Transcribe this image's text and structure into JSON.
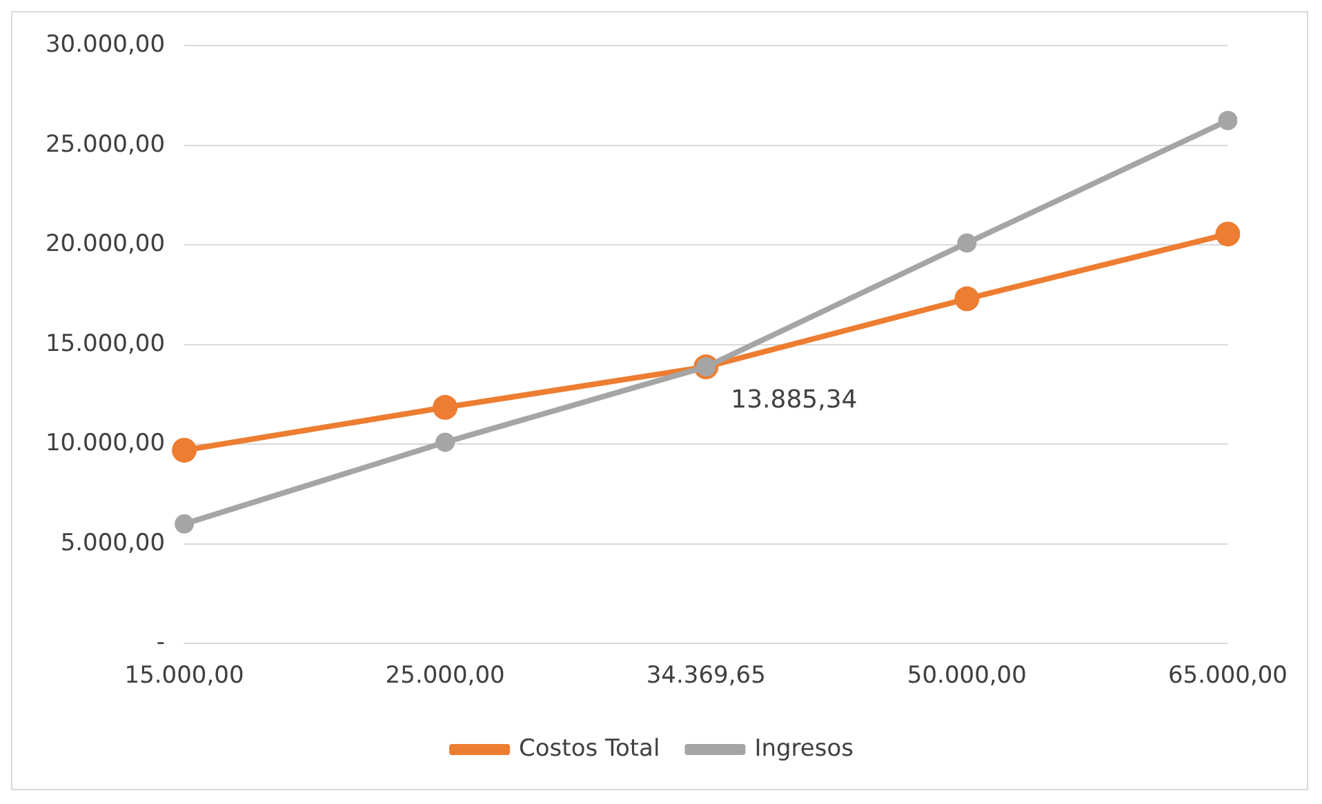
{
  "chart_data": {
    "type": "line",
    "categories": [
      "15.000,00",
      "25.000,00",
      "34.369,65",
      "50.000,00",
      "65.000,00"
    ],
    "series": [
      {
        "name": "Costos Total",
        "color": "#ed7d31",
        "values": [
          9700,
          11850,
          13885.34,
          17300,
          20550
        ]
      },
      {
        "name": "Ingresos",
        "color": "#a5a5a5",
        "values": [
          6000,
          10100,
          13885.34,
          20100,
          26250
        ]
      }
    ],
    "ylim": [
      0,
      30000
    ],
    "yticks": [
      {
        "value": 0,
        "label": "-"
      },
      {
        "value": 5000,
        "label": "5.000,00"
      },
      {
        "value": 10000,
        "label": "10.000,00"
      },
      {
        "value": 15000,
        "label": "15.000,00"
      },
      {
        "value": 20000,
        "label": "20.000,00"
      },
      {
        "value": 25000,
        "label": "25.000,00"
      },
      {
        "value": 30000,
        "label": "30.000,00"
      }
    ],
    "annotations": [
      {
        "text": "13.885,34",
        "x": "34.369,65",
        "y": 13885.34
      }
    ],
    "grid": "y",
    "legend": "bottom",
    "marker": "circle",
    "line_style": "solid"
  }
}
